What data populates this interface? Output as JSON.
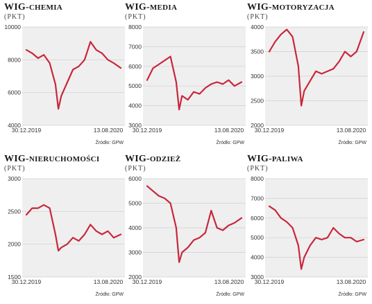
{
  "accent_color": "#c8273a",
  "charts": [
    {
      "title_main": "WIG-",
      "title_sub": "chemia",
      "unit": "(PKT)",
      "source": "Źródło: GPW",
      "x_start": "30.12.2019",
      "x_end": "13.08.2020",
      "y_ticks": [
        "10000",
        "8000",
        "6000",
        "4000"
      ]
    },
    {
      "title_main": "WIG-",
      "title_sub": "media",
      "unit": "(PKT)",
      "source": "Źródło: GPW",
      "x_start": "30.12.2019",
      "x_end": "13.08.2020",
      "y_ticks": [
        "8000",
        "7000",
        "6000",
        "5000",
        "4000",
        "3000"
      ]
    },
    {
      "title_main": "WIG-",
      "title_sub": "motoryzacja",
      "unit": "(PKT)",
      "source": "Źródło: GPW",
      "x_start": "30.12.2019",
      "x_end": "13.08.2020",
      "y_ticks": [
        "4000",
        "3500",
        "3000",
        "2500",
        "2000"
      ]
    },
    {
      "title_main": "WIG-",
      "title_sub": "nieruchomości",
      "unit": "(PKT)",
      "source": "Źródło: GPW",
      "x_start": "30.12.2019",
      "x_end": "13.08.2020",
      "y_ticks": [
        "3000",
        "2500",
        "2000",
        "1500"
      ]
    },
    {
      "title_main": "WIG-",
      "title_sub": "odzież",
      "unit": "(PKT)",
      "source": "Źródło: GPW",
      "x_start": "30.12.2019",
      "x_end": "13.08.2020",
      "y_ticks": [
        "6000",
        "5000",
        "4000",
        "3000",
        "2000"
      ]
    },
    {
      "title_main": "WIG-",
      "title_sub": "paliwa",
      "unit": "(PKT)",
      "source": "Źródło: GPW",
      "x_start": "30.12.2019",
      "x_end": "13.08.2020",
      "y_ticks": [
        "8000",
        "7000",
        "6000",
        "5000",
        "4000",
        "3000"
      ]
    }
  ],
  "chart_data": [
    {
      "type": "line",
      "title": "WIG-chemia",
      "ylabel": "(PKT)",
      "ylim": [
        4000,
        10000
      ],
      "x": [
        "2019-12-30",
        "2020-01-13",
        "2020-01-27",
        "2020-02-10",
        "2020-02-24",
        "2020-03-09",
        "2020-03-16",
        "2020-03-23",
        "2020-04-06",
        "2020-04-20",
        "2020-05-04",
        "2020-05-18",
        "2020-06-01",
        "2020-06-15",
        "2020-06-29",
        "2020-07-13",
        "2020-07-27",
        "2020-08-13"
      ],
      "series": [
        {
          "values": [
            8600,
            8400,
            8100,
            8300,
            7800,
            6500,
            5000,
            5800,
            6600,
            7400,
            7600,
            8000,
            9100,
            8600,
            8400,
            8000,
            7800,
            7500
          ]
        }
      ]
    },
    {
      "type": "line",
      "title": "WIG-media",
      "ylabel": "(PKT)",
      "ylim": [
        3000,
        8000
      ],
      "x": [
        "2019-12-30",
        "2020-01-13",
        "2020-01-27",
        "2020-02-10",
        "2020-02-24",
        "2020-03-09",
        "2020-03-16",
        "2020-03-23",
        "2020-04-06",
        "2020-04-20",
        "2020-05-04",
        "2020-05-18",
        "2020-06-01",
        "2020-06-15",
        "2020-06-29",
        "2020-07-13",
        "2020-07-27",
        "2020-08-13"
      ],
      "series": [
        {
          "values": [
            5300,
            5900,
            6100,
            6300,
            6500,
            5200,
            3800,
            4500,
            4300,
            4700,
            4600,
            4900,
            5100,
            5200,
            5100,
            5300,
            5000,
            5200
          ]
        }
      ]
    },
    {
      "type": "line",
      "title": "WIG-motoryzacja",
      "ylabel": "(PKT)",
      "ylim": [
        2000,
        4000
      ],
      "x": [
        "2019-12-30",
        "2020-01-13",
        "2020-01-27",
        "2020-02-10",
        "2020-02-24",
        "2020-03-09",
        "2020-03-16",
        "2020-03-23",
        "2020-04-06",
        "2020-04-20",
        "2020-05-04",
        "2020-05-18",
        "2020-06-01",
        "2020-06-15",
        "2020-06-29",
        "2020-07-13",
        "2020-07-27",
        "2020-08-13"
      ],
      "series": [
        {
          "values": [
            3500,
            3700,
            3850,
            3950,
            3800,
            3200,
            2400,
            2700,
            2900,
            3100,
            3050,
            3100,
            3150,
            3300,
            3500,
            3400,
            3500,
            3900
          ]
        }
      ]
    },
    {
      "type": "line",
      "title": "WIG-nieruchomości",
      "ylabel": "(PKT)",
      "ylim": [
        1500,
        3000
      ],
      "x": [
        "2019-12-30",
        "2020-01-13",
        "2020-01-27",
        "2020-02-10",
        "2020-02-24",
        "2020-03-09",
        "2020-03-16",
        "2020-03-23",
        "2020-04-06",
        "2020-04-20",
        "2020-05-04",
        "2020-05-18",
        "2020-06-01",
        "2020-06-15",
        "2020-06-29",
        "2020-07-13",
        "2020-07-27",
        "2020-08-13"
      ],
      "series": [
        {
          "values": [
            2450,
            2550,
            2550,
            2600,
            2550,
            2150,
            1900,
            1950,
            2000,
            2100,
            2050,
            2150,
            2300,
            2200,
            2150,
            2200,
            2100,
            2150
          ]
        }
      ]
    },
    {
      "type": "line",
      "title": "WIG-odzież",
      "ylabel": "(PKT)",
      "ylim": [
        2000,
        6000
      ],
      "x": [
        "2019-12-30",
        "2020-01-13",
        "2020-01-27",
        "2020-02-10",
        "2020-02-24",
        "2020-03-09",
        "2020-03-16",
        "2020-03-23",
        "2020-04-06",
        "2020-04-20",
        "2020-05-04",
        "2020-05-18",
        "2020-06-01",
        "2020-06-15",
        "2020-06-29",
        "2020-07-13",
        "2020-07-27",
        "2020-08-13"
      ],
      "series": [
        {
          "values": [
            5700,
            5500,
            5300,
            5200,
            5000,
            4000,
            2600,
            3000,
            3200,
            3500,
            3600,
            3800,
            4700,
            4000,
            3900,
            4100,
            4200,
            4400
          ]
        }
      ]
    },
    {
      "type": "line",
      "title": "WIG-paliwa",
      "ylabel": "(PKT)",
      "ylim": [
        3000,
        8000
      ],
      "x": [
        "2019-12-30",
        "2020-01-13",
        "2020-01-27",
        "2020-02-10",
        "2020-02-24",
        "2020-03-09",
        "2020-03-16",
        "2020-03-23",
        "2020-04-06",
        "2020-04-20",
        "2020-05-04",
        "2020-05-18",
        "2020-06-01",
        "2020-06-15",
        "2020-06-29",
        "2020-07-13",
        "2020-07-27",
        "2020-08-13"
      ],
      "series": [
        {
          "values": [
            6600,
            6400,
            6000,
            5800,
            5500,
            4600,
            3400,
            4000,
            4600,
            5000,
            4900,
            5000,
            5500,
            5200,
            5000,
            5000,
            4800,
            4900
          ]
        }
      ]
    }
  ]
}
